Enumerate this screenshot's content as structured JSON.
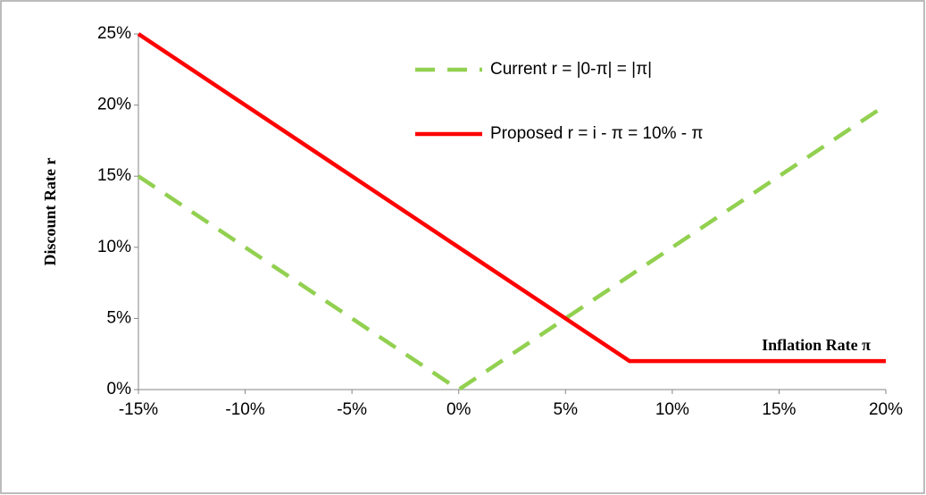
{
  "chart_data": {
    "type": "line",
    "x_label": "Inflation Rate π",
    "y_label": "Discount Rate r",
    "series": [
      {
        "name": "Current r = |0-π| = |π|",
        "color": "#92d050",
        "dashed": true,
        "x": [
          -15,
          0,
          20
        ],
        "values": [
          15,
          0,
          20
        ]
      },
      {
        "name": "Proposed r = i - π = 10% - π",
        "color": "#ff0000",
        "dashed": false,
        "x": [
          -15,
          8,
          20
        ],
        "values": [
          25,
          2,
          2
        ]
      }
    ],
    "xlim": [
      -15,
      20
    ],
    "xticks": [
      {
        "value": -15,
        "label": "-15%"
      },
      {
        "value": -10,
        "label": "-10%"
      },
      {
        "value": -5,
        "label": "-5%"
      },
      {
        "value": 0,
        "label": "0%"
      },
      {
        "value": 5,
        "label": "5%"
      },
      {
        "value": 10,
        "label": "10%"
      },
      {
        "value": 15,
        "label": "15%"
      },
      {
        "value": 20,
        "label": "20%"
      }
    ],
    "ylim": [
      0,
      25
    ],
    "yticks": [
      {
        "value": 0,
        "label": "0%"
      },
      {
        "value": 5,
        "label": "5%"
      },
      {
        "value": 10,
        "label": "10%"
      },
      {
        "value": 15,
        "label": "15%"
      },
      {
        "value": 20,
        "label": "20%"
      },
      {
        "value": 25,
        "label": "25%"
      }
    ],
    "grid": false
  }
}
